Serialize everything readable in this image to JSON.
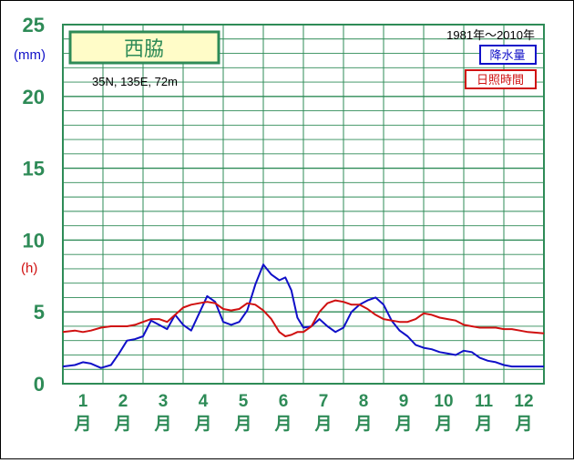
{
  "chart_data": {
    "type": "line",
    "station": "西脇",
    "coords": "35N,  135E,  72m",
    "period": "1981年〜2010年",
    "units": {
      "precip": "(mm)",
      "sunshine": "(h)"
    },
    "ylim": [
      0,
      25
    ],
    "yticks": [
      "0",
      "5",
      "10",
      "15",
      "20",
      "25"
    ],
    "months": [
      "1",
      "2",
      "3",
      "4",
      "5",
      "6",
      "7",
      "8",
      "9",
      "10",
      "11",
      "12"
    ],
    "month_suffix": "月",
    "series": [
      {
        "name": "降水量",
        "color": "#1010c8",
        "x": [
          0.5,
          0.8,
          1.0,
          1.2,
          1.45,
          1.7,
          1.9,
          2.1,
          2.3,
          2.5,
          2.7,
          2.9,
          3.1,
          3.3,
          3.5,
          3.7,
          3.9,
          4.1,
          4.3,
          4.5,
          4.7,
          4.9,
          5.1,
          5.3,
          5.5,
          5.7,
          5.9,
          6.05,
          6.2,
          6.35,
          6.5,
          6.7,
          6.9,
          7.1,
          7.3,
          7.5,
          7.7,
          7.9,
          8.1,
          8.3,
          8.5,
          8.7,
          8.9,
          9.1,
          9.3,
          9.5,
          9.7,
          9.9,
          10.1,
          10.3,
          10.5,
          10.7,
          10.9,
          11.1,
          11.3,
          11.5,
          11.7,
          11.9,
          12.1,
          12.5
        ],
        "values": [
          1.2,
          1.3,
          1.5,
          1.4,
          1.1,
          1.3,
          2.1,
          3.0,
          3.1,
          3.3,
          4.4,
          4.1,
          3.8,
          4.8,
          4.1,
          3.7,
          4.9,
          6.1,
          5.7,
          4.3,
          4.1,
          4.3,
          5.1,
          6.9,
          8.3,
          7.6,
          7.2,
          7.4,
          6.5,
          4.6,
          3.9,
          4.0,
          4.5,
          4.0,
          3.6,
          3.9,
          5.0,
          5.5,
          5.8,
          6.0,
          5.5,
          4.4,
          3.7,
          3.3,
          2.7,
          2.5,
          2.4,
          2.2,
          2.1,
          2.0,
          2.3,
          2.2,
          1.8,
          1.6,
          1.5,
          1.3,
          1.2,
          1.2,
          1.2,
          1.2
        ]
      },
      {
        "name": "日照時間",
        "color": "#d01010",
        "x": [
          0.5,
          0.8,
          1.0,
          1.2,
          1.45,
          1.7,
          1.9,
          2.1,
          2.3,
          2.5,
          2.7,
          2.9,
          3.1,
          3.3,
          3.5,
          3.7,
          3.9,
          4.1,
          4.3,
          4.5,
          4.7,
          4.9,
          5.1,
          5.3,
          5.5,
          5.7,
          5.9,
          6.05,
          6.2,
          6.35,
          6.5,
          6.7,
          6.9,
          7.1,
          7.3,
          7.5,
          7.7,
          7.9,
          8.1,
          8.3,
          8.5,
          8.7,
          8.9,
          9.1,
          9.3,
          9.5,
          9.7,
          9.9,
          10.1,
          10.3,
          10.5,
          10.7,
          10.9,
          11.1,
          11.3,
          11.5,
          11.7,
          11.9,
          12.1,
          12.5
        ],
        "values": [
          3.6,
          3.7,
          3.6,
          3.7,
          3.9,
          4.0,
          4.0,
          4.0,
          4.1,
          4.3,
          4.5,
          4.5,
          4.3,
          4.8,
          5.3,
          5.5,
          5.6,
          5.7,
          5.6,
          5.2,
          5.1,
          5.2,
          5.6,
          5.5,
          5.1,
          4.5,
          3.6,
          3.3,
          3.4,
          3.6,
          3.6,
          4.0,
          5.0,
          5.6,
          5.8,
          5.7,
          5.5,
          5.5,
          5.2,
          4.8,
          4.5,
          4.4,
          4.3,
          4.3,
          4.5,
          4.9,
          4.8,
          4.6,
          4.5,
          4.4,
          4.1,
          4.0,
          3.9,
          3.9,
          3.9,
          3.8,
          3.8,
          3.7,
          3.6,
          3.5
        ]
      }
    ],
    "grid": true,
    "legend_position": "top-right"
  }
}
